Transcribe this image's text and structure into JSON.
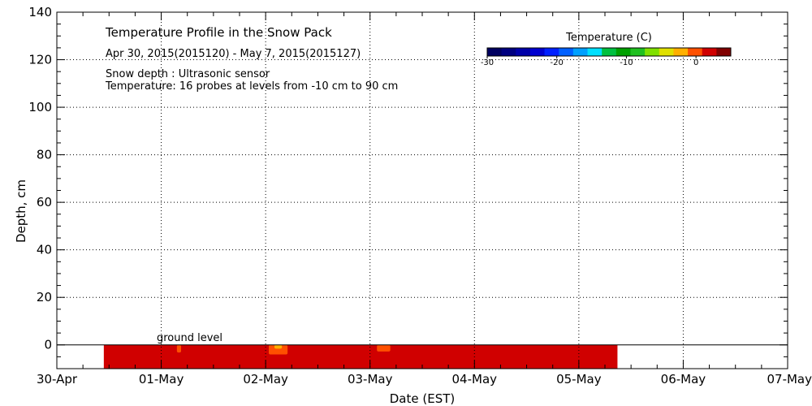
{
  "chart_data": {
    "type": "heatmap",
    "title": "Temperature Profile in the Snow Pack",
    "subtitle": "Apr 30, 2015(2015120) - May  7, 2015(2015127)",
    "notes": [
      "Snow depth : Ultrasonic sensor",
      "Temperature: 16 probes at levels from -10 cm to 90 cm"
    ],
    "annotation": "ground level",
    "xlabel": "Date (EST)",
    "ylabel": "Depth, cm",
    "x_ticks": [
      "30-Apr",
      "01-May",
      "02-May",
      "03-May",
      "04-May",
      "05-May",
      "06-May",
      "07-May"
    ],
    "xlim_days": [
      0,
      7
    ],
    "y_ticks": [
      0,
      20,
      40,
      60,
      80,
      100,
      120,
      140
    ],
    "ylim": [
      -10,
      140
    ],
    "grid": true,
    "colorbar": {
      "title": "Temperature (C)",
      "ticks": [
        -30,
        -20,
        -10,
        0
      ],
      "range": [
        -30,
        5
      ],
      "colors": [
        "#000060",
        "#000080",
        "#0000a8",
        "#0000d0",
        "#0020ff",
        "#0060ff",
        "#00a0ff",
        "#00e0ff",
        "#00c040",
        "#00a000",
        "#20c020",
        "#80e000",
        "#e0e000",
        "#ffb000",
        "#ff5000",
        "#d00000",
        "#800000"
      ]
    },
    "data_extent": {
      "x_start_day": 0.45,
      "x_end_day": 5.37,
      "depth_top": 0,
      "depth_bottom": -10
    },
    "base_temperature": 1,
    "warm_spots": [
      {
        "center_day": 1.17,
        "width_day": 0.05,
        "depth_top": 0,
        "depth_bottom": -4,
        "temperature": -1
      },
      {
        "center_day": 2.12,
        "width_day": 0.18,
        "depth_top": 0,
        "depth_bottom": -4,
        "temperature": -1.5
      },
      {
        "center_day": 3.13,
        "width_day": 0.16,
        "depth_top": 0,
        "depth_bottom": -3.5,
        "temperature": -1
      }
    ]
  }
}
